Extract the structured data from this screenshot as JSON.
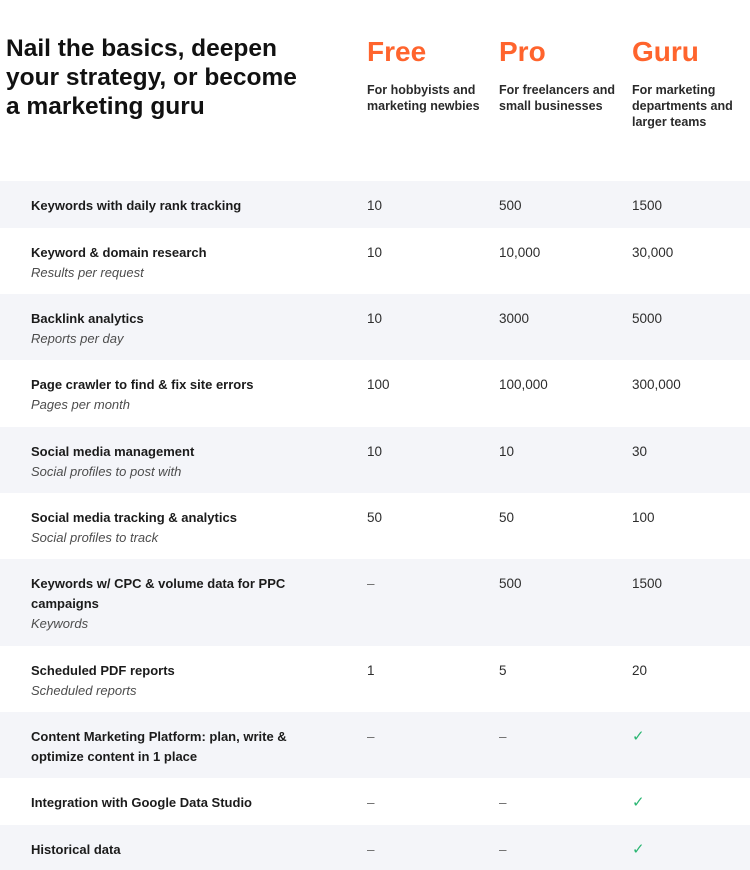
{
  "headline": "Nail the basics, deepen your strategy, or become a marketing guru",
  "plans": [
    {
      "name": "Free",
      "description": "For hobbyists and marketing newbies"
    },
    {
      "name": "Pro",
      "description": "For freelancers and small businesses"
    },
    {
      "name": "Guru",
      "description": "For marketing departments and larger teams"
    }
  ],
  "rows": [
    {
      "title": "Keywords with daily rank tracking",
      "subtitle": "",
      "values": [
        "10",
        "500",
        "1500"
      ]
    },
    {
      "title": "Keyword & domain research",
      "subtitle": "Results per request",
      "values": [
        "10",
        "10,000",
        "30,000"
      ]
    },
    {
      "title": "Backlink analytics",
      "subtitle": "Reports per day",
      "values": [
        "10",
        "3000",
        "5000"
      ]
    },
    {
      "title": "Page crawler to find & fix site errors",
      "subtitle": "Pages per month",
      "values": [
        "100",
        "100,000",
        "300,000"
      ]
    },
    {
      "title": "Social media management",
      "subtitle": "Social profiles to post with",
      "values": [
        "10",
        "10",
        "30"
      ]
    },
    {
      "title": "Social media tracking & analytics",
      "subtitle": "Social profiles to track",
      "values": [
        "50",
        "50",
        "100"
      ]
    },
    {
      "title": "Keywords w/ CPC & volume data for PPC campaigns",
      "subtitle": "Keywords",
      "values": [
        "–",
        "500",
        "1500"
      ]
    },
    {
      "title": "Scheduled PDF reports",
      "subtitle": "Scheduled reports",
      "values": [
        "1",
        "5",
        "20"
      ]
    },
    {
      "title": "Content Marketing Platform: plan, write & optimize content in 1 place",
      "subtitle": "",
      "values": [
        "–",
        "–",
        "✓"
      ]
    },
    {
      "title": "Integration with Google Data Studio",
      "subtitle": "",
      "values": [
        "–",
        "–",
        "✓"
      ]
    },
    {
      "title": "Historical data",
      "subtitle": "",
      "values": [
        "–",
        "–",
        "✓"
      ]
    }
  ],
  "colors": {
    "accent": "#ff642d",
    "check": "#2bb673",
    "row_alt_bg": "#f4f5f9"
  }
}
